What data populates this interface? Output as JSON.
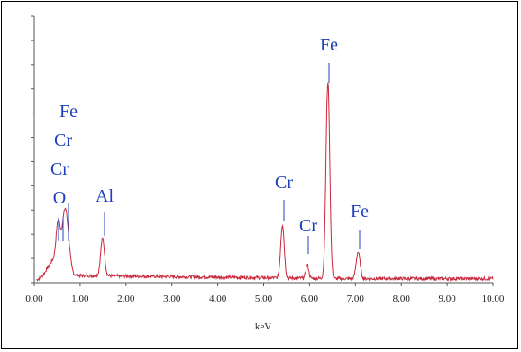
{
  "chart_data": {
    "type": "line",
    "title": "",
    "xlabel": "keV",
    "ylabel": "",
    "xlim": [
      0,
      10
    ],
    "ylim": [
      0,
      100
    ],
    "x_ticks": [
      "0.00",
      "1.00",
      "2.00",
      "3.00",
      "4.00",
      "5.00",
      "6.00",
      "7.00",
      "8.00",
      "9.00",
      "10.00"
    ],
    "y_ticks_count": 12,
    "grid": false,
    "series": [
      {
        "color": "#c8283c",
        "peaks": [
          {
            "center": 0.52,
            "height": 14,
            "width": 0.06
          },
          {
            "center": 0.68,
            "height": 24,
            "width": 0.1
          },
          {
            "center": 1.49,
            "height": 14,
            "width": 0.06
          },
          {
            "center": 5.41,
            "height": 20,
            "width": 0.055
          },
          {
            "center": 5.95,
            "height": 5,
            "width": 0.045
          },
          {
            "center": 6.4,
            "height": 74,
            "width": 0.058
          },
          {
            "center": 7.06,
            "height": 10,
            "width": 0.06
          }
        ],
        "background": "low continuum ~1.5–3 units with noise, rising edge near 0.2–0.7 keV"
      }
    ],
    "annotations": [
      {
        "text": "Fe",
        "x": 0.68,
        "lines": [
          "Fe",
          "Cr",
          "Cr",
          "O"
        ]
      },
      {
        "text": "Al",
        "x": 1.49
      },
      {
        "text": "Cr",
        "x": 5.41
      },
      {
        "text": "Cr",
        "x": 5.95
      },
      {
        "text": "Fe",
        "x": 6.4
      },
      {
        "text": "Fe",
        "x": 7.06
      }
    ],
    "colors": {
      "curve": "#c8283c",
      "labels": "#1f3fbf",
      "axis": "#555555"
    }
  }
}
